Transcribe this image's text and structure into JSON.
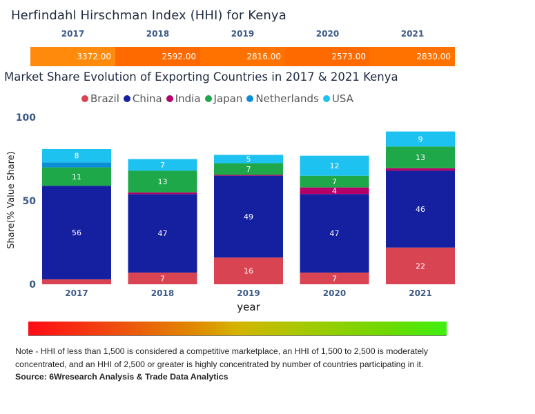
{
  "hhi": {
    "title": "Herfindahl Hirschman Index (HHI) for Kenya",
    "years": [
      "2017",
      "2018",
      "2019",
      "2020",
      "2021"
    ],
    "values": [
      "3372.00",
      "2592.00",
      "2816.00",
      "2573.00",
      "2830.00"
    ],
    "cell_colors": [
      "#ff8a0c",
      "#ff6a00",
      "#ff7200",
      "#ff6a00",
      "#ff7200"
    ]
  },
  "chart_data": {
    "type": "bar",
    "stacked": true,
    "title": "Market Share Evolution of Exporting Countries in 2017 & 2021 Kenya",
    "xlabel": "year",
    "ylabel": "Share(% Value Share)",
    "ylim": [
      0,
      100
    ],
    "yticks": [
      "0",
      "50",
      "100"
    ],
    "categories": [
      "2017",
      "2018",
      "2019",
      "2020",
      "2021"
    ],
    "legend_position": "top",
    "series": [
      {
        "name": "Brazil",
        "color": "#d94452",
        "values": [
          3,
          7,
          16,
          7,
          22
        ],
        "labels": [
          "",
          "7",
          "16",
          "7",
          "22"
        ]
      },
      {
        "name": "China",
        "color": "#1420a0",
        "values": [
          56,
          47,
          49,
          47,
          46
        ],
        "labels": [
          "56",
          "47",
          "49",
          "47",
          "46"
        ]
      },
      {
        "name": "India",
        "color": "#b5006a",
        "values": [
          0,
          1,
          0.5,
          4,
          1.5
        ],
        "labels": [
          "",
          "",
          "",
          "4",
          ""
        ]
      },
      {
        "name": "Japan",
        "color": "#1fa84a",
        "values": [
          11,
          13,
          7,
          7,
          13
        ],
        "labels": [
          "11",
          "13",
          "7",
          "7",
          "13"
        ]
      },
      {
        "name": "Netherlands",
        "color": "#0a8fd6",
        "values": [
          3,
          0,
          0,
          0,
          0
        ],
        "labels": [
          "",
          "",
          "",
          "",
          ""
        ]
      },
      {
        "name": "USA",
        "color": "#1ec2f0",
        "values": [
          8,
          7,
          5,
          12,
          9
        ],
        "labels": [
          "8",
          "7",
          "5",
          "12",
          "9"
        ]
      }
    ]
  },
  "note": {
    "text": "Note - HHI of less than 1,500 is considered a competitive marketplace, an HHI of 1,500 to 2,500 is moderately concentrated, and an HHI of 2,500 or greater is highly concentrated by number of countries participating in it.",
    "source": "Source: 6Wresearch Analysis & Trade Data Analytics"
  }
}
